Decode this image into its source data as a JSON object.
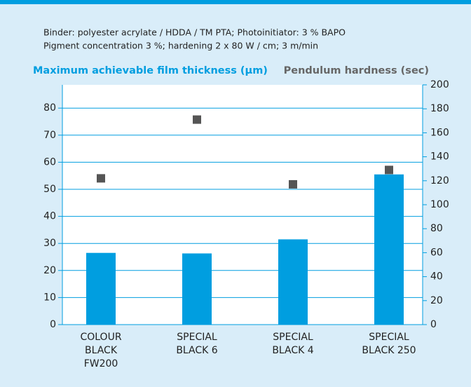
{
  "chart_data": {
    "type": "bar",
    "subtitle": [
      "Binder: polyester acrylate / HDDA / TM PTA; Photoinitiator: 3 % BAPO",
      "Pigment concentration 3 %; hardening 2 x 80 W / cm; 3 m/min"
    ],
    "y_label": "Maximum achievable film thickness (µm)",
    "y2_label": "Pendulum hardness (sec)",
    "categories": [
      [
        "COLOUR",
        "BLACK",
        "FW200"
      ],
      [
        "SPECIAL",
        "BLACK 6"
      ],
      [
        "SPECIAL",
        "BLACK 4"
      ],
      [
        "SPECIAL",
        "BLACK 250"
      ]
    ],
    "series": [
      {
        "name": "Maximum achievable film thickness (µm)",
        "color": "#009ee0",
        "values": [
          26.5,
          26.3,
          31.5,
          55.5
        ]
      },
      {
        "name": "Pendulum hardness (sec)",
        "color": "#555555",
        "axis": "y2",
        "values": [
          122,
          171,
          117,
          129
        ]
      }
    ],
    "ylim": [
      0,
      88.6
    ],
    "yticks": [
      0,
      10,
      20,
      30,
      40,
      50,
      60,
      70,
      80
    ],
    "y2lim": [
      0,
      200
    ],
    "y2ticks": [
      0,
      20,
      40,
      60,
      80,
      100,
      120,
      140,
      160,
      180,
      200
    ],
    "grid": true
  }
}
